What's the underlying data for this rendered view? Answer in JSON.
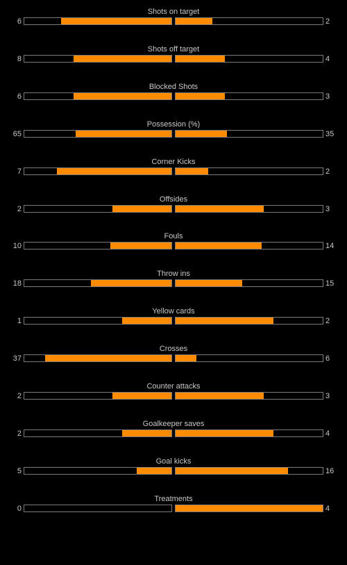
{
  "colors": {
    "background": "#000000",
    "bar_fill": "#ff8c00",
    "bar_border": "#7a7a7a",
    "text": "#c8c8c8"
  },
  "stats": [
    {
      "label": "Shots on target",
      "home": "6",
      "away": "2",
      "home_share": 0.75,
      "away_share": 0.25
    },
    {
      "label": "Shots off target",
      "home": "8",
      "away": "4",
      "home_share": 0.667,
      "away_share": 0.333
    },
    {
      "label": "Blocked Shots",
      "home": "6",
      "away": "3",
      "home_share": 0.667,
      "away_share": 0.333
    },
    {
      "label": "Possession (%)",
      "home": "65",
      "away": "35",
      "home_share": 0.65,
      "away_share": 0.35
    },
    {
      "label": "Corner Kicks",
      "home": "7",
      "away": "2",
      "home_share": 0.778,
      "away_share": 0.222
    },
    {
      "label": "Offsides",
      "home": "2",
      "away": "3",
      "home_share": 0.4,
      "away_share": 0.6
    },
    {
      "label": "Fouls",
      "home": "10",
      "away": "14",
      "home_share": 0.417,
      "away_share": 0.583
    },
    {
      "label": "Throw ins",
      "home": "18",
      "away": "15",
      "home_share": 0.545,
      "away_share": 0.455
    },
    {
      "label": "Yellow cards",
      "home": "1",
      "away": "2",
      "home_share": 0.333,
      "away_share": 0.667
    },
    {
      "label": "Crosses",
      "home": "37",
      "away": "6",
      "home_share": 0.86,
      "away_share": 0.14
    },
    {
      "label": "Counter attacks",
      "home": "2",
      "away": "3",
      "home_share": 0.4,
      "away_share": 0.6
    },
    {
      "label": "Goalkeeper saves",
      "home": "2",
      "away": "4",
      "home_share": 0.333,
      "away_share": 0.667
    },
    {
      "label": "Goal kicks",
      "home": "5",
      "away": "16",
      "home_share": 0.238,
      "away_share": 0.762
    },
    {
      "label": "Treatments",
      "home": "0",
      "away": "4",
      "home_share": 0.0,
      "away_share": 1.0
    }
  ]
}
